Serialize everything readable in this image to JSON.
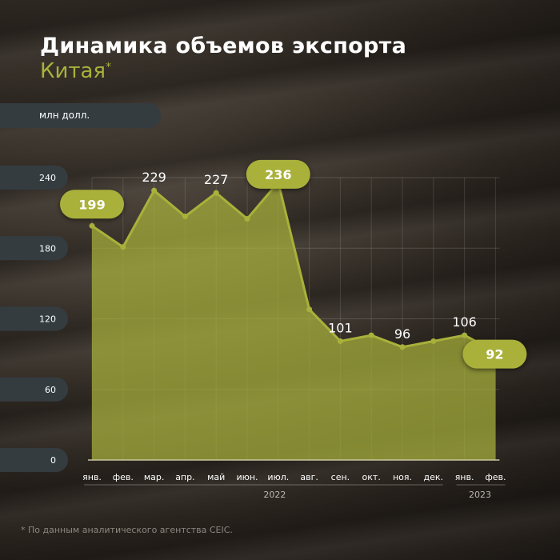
{
  "title": "Динамика объемов экспорта",
  "subtitle": "Китая",
  "subtitle_mark": "*",
  "unit": "млн долл.",
  "footnote": "*  По данным аналитического агентства CEIC.",
  "colors": {
    "accent": "#a9b13b",
    "pill": "#343c40"
  },
  "chart_data": {
    "type": "area",
    "ylabel": "млн долл.",
    "ylim": [
      0,
      240
    ],
    "yticks": [
      0,
      60,
      120,
      180,
      240
    ],
    "grid": true,
    "categories": [
      "янв.",
      "фев.",
      "мар.",
      "апр.",
      "май",
      "июн.",
      "июл.",
      "авг.",
      "сен.",
      "окт.",
      "ноя.",
      "дек.",
      "янв.",
      "фев."
    ],
    "years": [
      {
        "label": "2022",
        "from": 0,
        "to": 11
      },
      {
        "label": "2023",
        "from": 12,
        "to": 13
      }
    ],
    "values": [
      199,
      181,
      229,
      207,
      227,
      205,
      236,
      128,
      101,
      106,
      96,
      101,
      106,
      92
    ],
    "labels": [
      {
        "index": 0,
        "text": "199",
        "style": "pill"
      },
      {
        "index": 2,
        "text": "229",
        "style": "plain"
      },
      {
        "index": 4,
        "text": "227",
        "style": "plain"
      },
      {
        "index": 6,
        "text": "236",
        "style": "pill"
      },
      {
        "index": 8,
        "text": "101",
        "style": "plain"
      },
      {
        "index": 10,
        "text": "96",
        "style": "plain"
      },
      {
        "index": 12,
        "text": "106",
        "style": "plain"
      },
      {
        "index": 13,
        "text": "92",
        "style": "pill"
      }
    ]
  }
}
